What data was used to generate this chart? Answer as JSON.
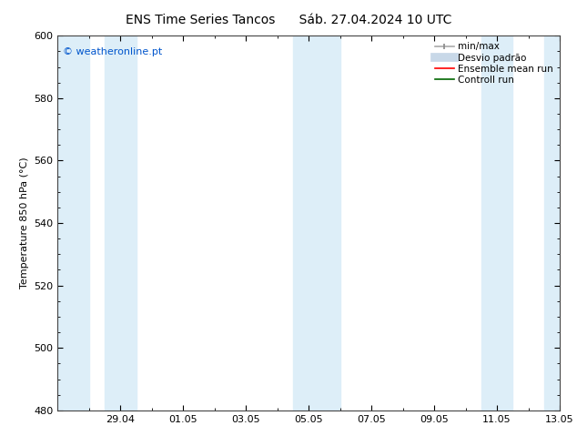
{
  "title_left": "ENS Time Series Tancos",
  "title_right": "Sáb. 27.04.2024 10 UTC",
  "ylabel": "Temperature 850 hPa (°C)",
  "ylim": [
    480,
    600
  ],
  "yticks": [
    480,
    500,
    520,
    540,
    560,
    580,
    600
  ],
  "xlabel_dates": [
    "29.04",
    "01.05",
    "03.05",
    "05.05",
    "07.05",
    "09.05",
    "11.05",
    "13.05"
  ],
  "date_positions": [
    2,
    4,
    6,
    8,
    10,
    12,
    14,
    16
  ],
  "watermark": "© weatheronline.pt",
  "bg_color": "#ffffff",
  "plot_bg_color": "#ffffff",
  "shaded_color": "#ddeef8",
  "shaded_ranges": [
    [
      0,
      1.0
    ],
    [
      1.5,
      2.5
    ],
    [
      7.5,
      9.0
    ],
    [
      13.5,
      14.5
    ],
    [
      15.5,
      16
    ]
  ],
  "tick_label_fontsize": 8,
  "title_fontsize": 10,
  "ylabel_fontsize": 8,
  "watermark_color": "#0055cc",
  "watermark_fontsize": 8,
  "xlim": [
    0,
    16
  ],
  "legend_fontsize": 7.5,
  "spine_color": "#444444"
}
